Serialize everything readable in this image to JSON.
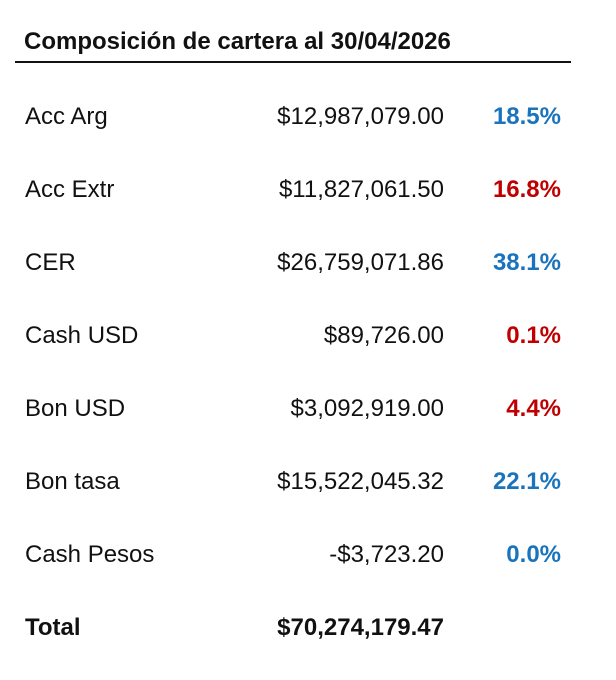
{
  "title": "Composición de cartera al 30/04/2026",
  "colors": {
    "positive_blue": "#1a73bd",
    "negative_red": "#c00000"
  },
  "rows": [
    {
      "label": "Acc Arg",
      "amount": "$12,987,079.00",
      "pct": "18.5%",
      "pct_color": "blue"
    },
    {
      "label": "Acc Extr",
      "amount": "$11,827,061.50",
      "pct": "16.8%",
      "pct_color": "red"
    },
    {
      "label": "CER",
      "amount": "$26,759,071.86",
      "pct": "38.1%",
      "pct_color": "blue"
    },
    {
      "label": "Cash USD",
      "amount": "$89,726.00",
      "pct": "0.1%",
      "pct_color": "red"
    },
    {
      "label": "Bon USD",
      "amount": "$3,092,919.00",
      "pct": "4.4%",
      "pct_color": "red"
    },
    {
      "label": "Bon tasa",
      "amount": "$15,522,045.32",
      "pct": "22.1%",
      "pct_color": "blue"
    },
    {
      "label": "Cash Pesos",
      "amount": "-$3,723.20",
      "pct": "0.0%",
      "pct_color": "blue"
    }
  ],
  "total": {
    "label": "Total",
    "amount": "$70,274,179.47"
  }
}
